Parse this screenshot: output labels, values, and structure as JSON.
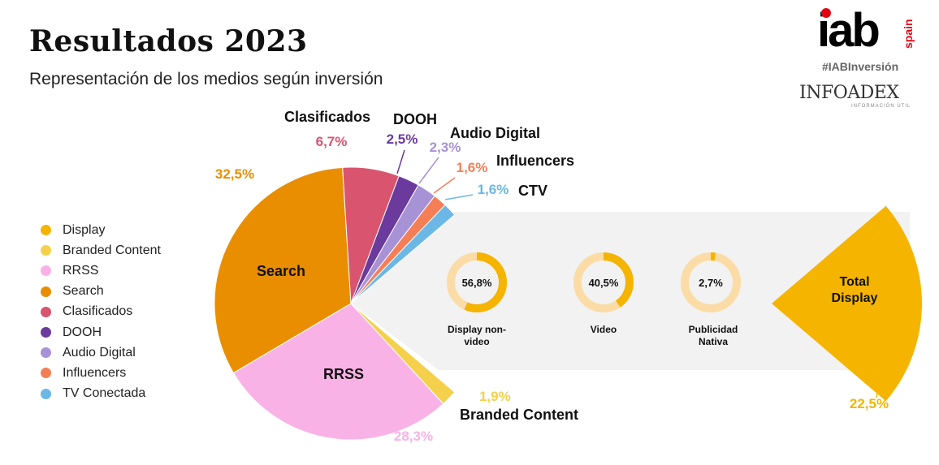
{
  "header": {
    "title": "Resultados 2023",
    "subtitle": "Representación de los medios según inversión"
  },
  "logo": {
    "iab": "iab",
    "spain": "spain",
    "hashtag": "#IABInversión",
    "infoadex": "INFOADEX",
    "infoadex_sub": "INFORMACIÓN ÚTIL"
  },
  "legend": [
    {
      "label": "Display",
      "color": "#F5B400"
    },
    {
      "label": "Branded Content",
      "color": "#F5D04A"
    },
    {
      "label": "RRSS",
      "color": "#F9B2E6"
    },
    {
      "label": "Search",
      "color": "#E88E00"
    },
    {
      "label": "Clasificados",
      "color": "#D9546E"
    },
    {
      "label": "DOOH",
      "color": "#6A3A9C"
    },
    {
      "label": "Audio Digital",
      "color": "#A792D6"
    },
    {
      "label": "Influencers",
      "color": "#F47F57"
    },
    {
      "label": "TV Conectada",
      "color": "#6BB8E6"
    }
  ],
  "chart_data": {
    "type": "pie",
    "slices": [
      {
        "key": "display",
        "name": "",
        "pct_label": "22,5%",
        "value": 22.5,
        "color": "#F5B400"
      },
      {
        "key": "branded",
        "name": "Branded Content",
        "pct_label": "1,9%",
        "value": 1.9,
        "color": "#F5D04A"
      },
      {
        "key": "rrss",
        "name": "RRSS",
        "pct_label": "28,3%",
        "value": 28.3,
        "color": "#F9B2E6"
      },
      {
        "key": "search",
        "name": "Search",
        "pct_label": "32,5%",
        "value": 32.5,
        "color": "#E88E00"
      },
      {
        "key": "clasificados",
        "name": "Clasificados",
        "pct_label": "6,7%",
        "value": 6.7,
        "color": "#D9546E"
      },
      {
        "key": "dooh",
        "name": "DOOH",
        "pct_label": "2,5%",
        "value": 2.5,
        "color": "#6A3A9C"
      },
      {
        "key": "audio",
        "name": "Audio Digital",
        "pct_label": "2,3%",
        "value": 2.3,
        "color": "#A792D6"
      },
      {
        "key": "influencers",
        "name": "Influencers",
        "pct_label": "1,6%",
        "value": 1.6,
        "color": "#F47F57"
      },
      {
        "key": "ctv",
        "name": "CTV",
        "pct_label": "1,6%",
        "value": 1.6,
        "color": "#6BB8E6"
      }
    ],
    "display_breakdown": {
      "label": "Total Display",
      "value_label": "22,5%",
      "items": [
        {
          "name": "Display non-video",
          "value": 56.8,
          "label": "56,8%"
        },
        {
          "name": "Video",
          "value": 40.5,
          "label": "40,5%"
        },
        {
          "name": "Publicidad Nativa",
          "value": 2.7,
          "label": "2,7%"
        }
      ]
    }
  }
}
